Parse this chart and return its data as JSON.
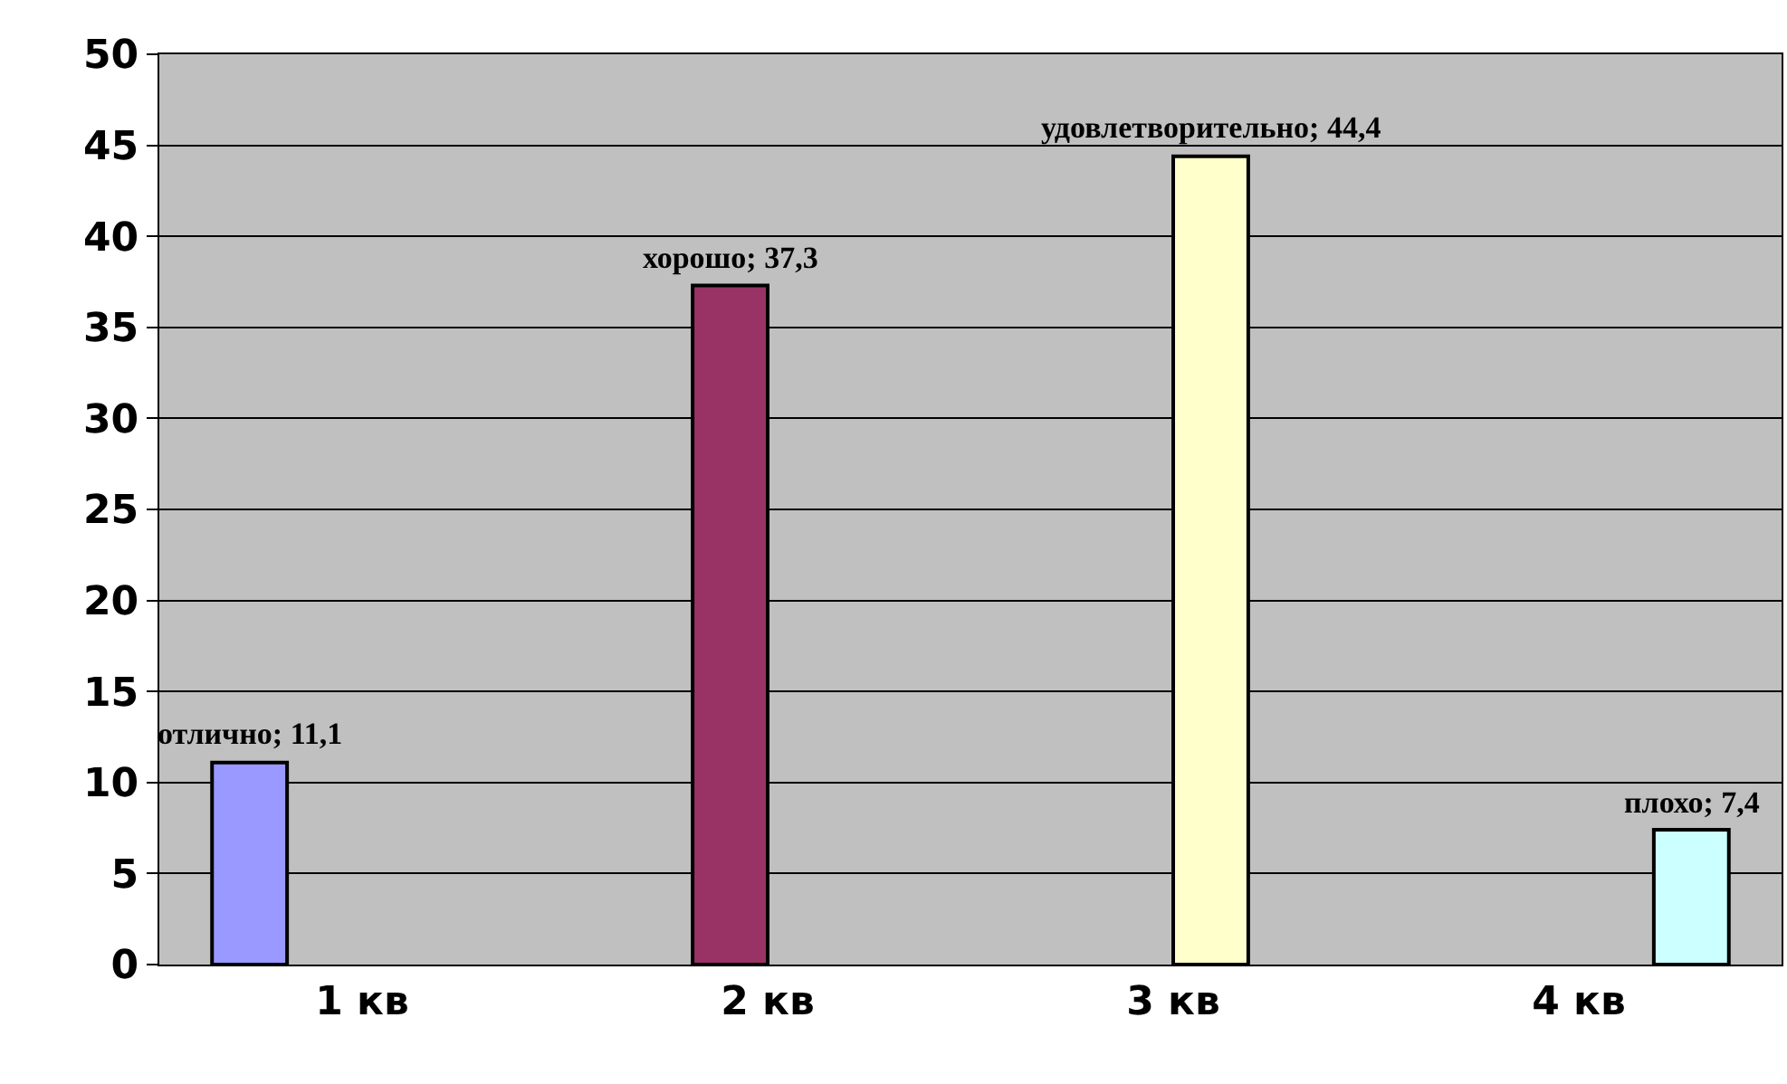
{
  "chart_data": {
    "type": "bar",
    "categories": [
      "1 кв",
      "2 кв",
      "3 кв",
      "4 кв"
    ],
    "series": [
      {
        "color": "#9999ff",
        "values": [
          11.1,
          null,
          null,
          null
        ],
        "value_labels": [
          "отлично; 11,1",
          null,
          null,
          null
        ]
      },
      {
        "color": "#993366",
        "values": [
          null,
          37.3,
          null,
          null
        ],
        "value_labels": [
          null,
          "хорошо; 37,3",
          null,
          null
        ]
      },
      {
        "color": "#ffffcc",
        "values": [
          null,
          null,
          44.4,
          null
        ],
        "value_labels": [
          null,
          null,
          "удовлетворительно; 44,4",
          null
        ]
      },
      {
        "color": "#ccffff",
        "values": [
          null,
          null,
          null,
          7.4
        ],
        "value_labels": [
          null,
          null,
          null,
          "плохо; 7,4"
        ]
      }
    ],
    "ylim": [
      0,
      50
    ],
    "yticks": [
      0,
      5,
      10,
      15,
      20,
      25,
      30,
      35,
      40,
      45,
      50
    ],
    "grid": "y"
  }
}
